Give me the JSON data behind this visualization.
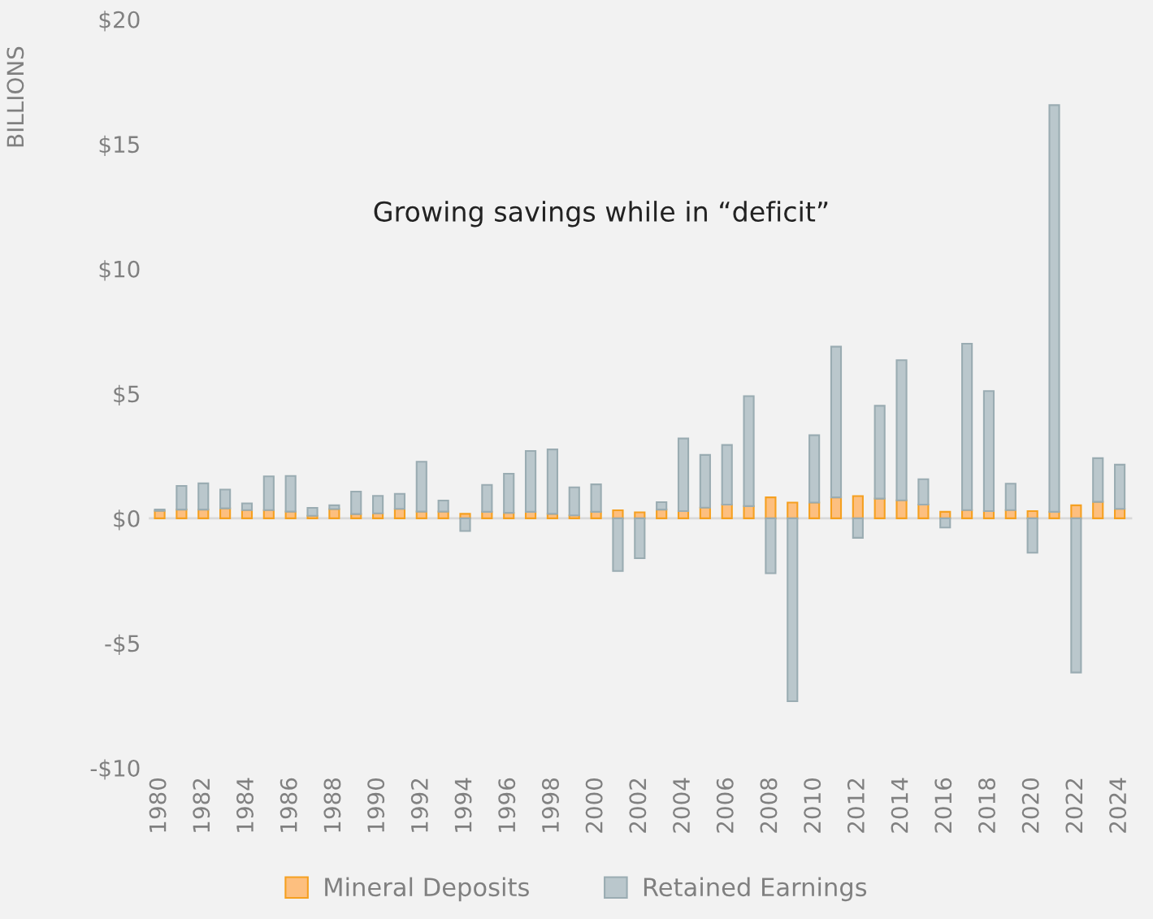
{
  "chart_data": {
    "type": "bar",
    "stacked": true,
    "ylabel": "BILLIONS",
    "annotations": [
      "Growing savings while in “deficit”"
    ],
    "categories": [
      "1980",
      null,
      "1982",
      null,
      "1984",
      null,
      "1986",
      null,
      "1988",
      null,
      "1990",
      null,
      "1992",
      null,
      "1994",
      null,
      "1996",
      null,
      "1998",
      null,
      "2000",
      null,
      "2002",
      null,
      "2004",
      null,
      "2006",
      null,
      "2008",
      null,
      "2010",
      null,
      "2012",
      null,
      "2014",
      null,
      "2016",
      null,
      "2018",
      null,
      "2020",
      null,
      "2022",
      null,
      "2024"
    ],
    "series": [
      {
        "name": "Mineral Deposits",
        "color": "#fdbf7f",
        "values": [
          0.3,
          0.35,
          0.35,
          0.4,
          0.33,
          0.33,
          0.27,
          0.1,
          0.37,
          0.17,
          0.2,
          0.38,
          0.27,
          0.27,
          0.18,
          0.26,
          0.22,
          0.26,
          0.18,
          0.12,
          0.26,
          0.32,
          0.24,
          0.35,
          0.29,
          0.43,
          0.55,
          0.49,
          0.84,
          0.63,
          0.63,
          0.84,
          0.89,
          0.79,
          0.72,
          0.55,
          0.26,
          0.33,
          0.29,
          0.33,
          0.29,
          0.26,
          0.52,
          0.66,
          0.38
        ]
      },
      {
        "name": "Retained Earnings",
        "color": "#bac7cc",
        "values": [
          0.05,
          0.95,
          1.05,
          0.75,
          0.27,
          1.35,
          1.43,
          0.32,
          0.15,
          0.9,
          0.7,
          0.6,
          2.0,
          0.44,
          -0.51,
          1.08,
          1.57,
          2.44,
          2.58,
          1.12,
          1.1,
          -2.11,
          -1.6,
          0.3,
          2.91,
          2.11,
          2.39,
          4.41,
          -2.2,
          -7.33,
          2.7,
          6.04,
          -0.78,
          3.72,
          5.62,
          1.02,
          -0.37,
          6.67,
          4.81,
          1.06,
          -1.38,
          16.3,
          -6.18,
          1.75,
          1.77
        ]
      }
    ],
    "ylim": [
      -10,
      20
    ],
    "yticks": [
      {
        "value": -10,
        "label": "-$10"
      },
      {
        "value": -5,
        "label": "-$5"
      },
      {
        "value": 0,
        "label": "$0"
      },
      {
        "value": 5,
        "label": "$5"
      },
      {
        "value": 10,
        "label": "$10"
      },
      {
        "value": 15,
        "label": "$15"
      },
      {
        "value": 20,
        "label": "$20"
      }
    ],
    "legend": "bottom"
  }
}
